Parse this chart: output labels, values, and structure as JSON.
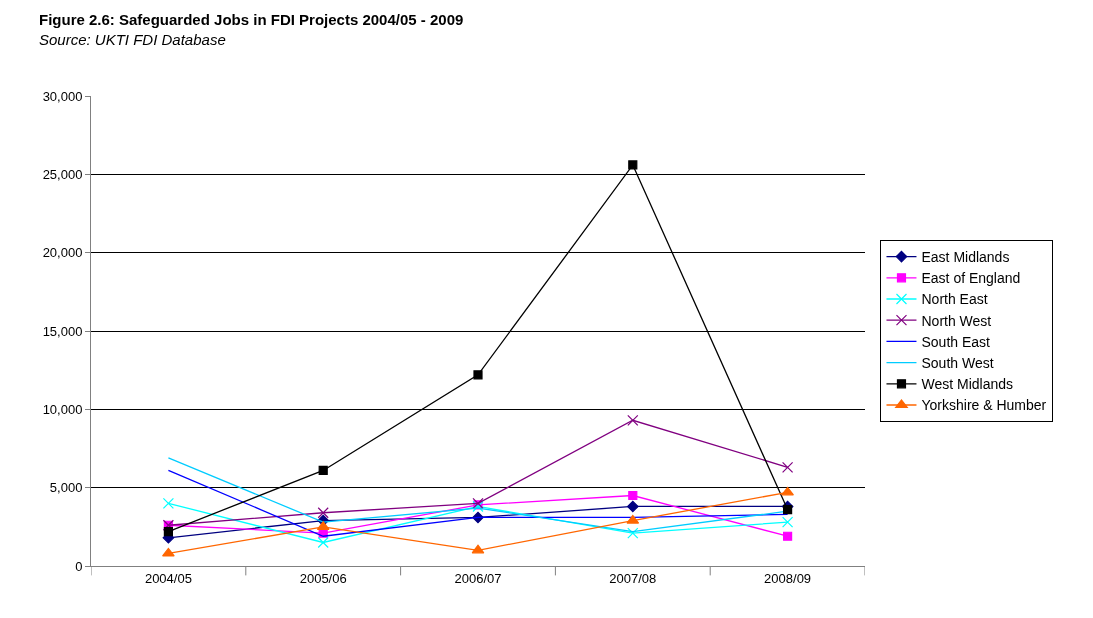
{
  "chart_data": {
    "type": "line",
    "title": "Figure 2.6: Safeguarded Jobs in FDI Projects 2004/05 - 2009",
    "subtitle": "Source: UKTI FDI Database",
    "categories": [
      "2004/05",
      "2005/06",
      "2006/07",
      "2007/08",
      "2008/09"
    ],
    "series": [
      {
        "name": "East Midlands",
        "color": "#000080",
        "marker": "diamond",
        "values": [
          1800,
          2900,
          3100,
          3800,
          3800
        ]
      },
      {
        "name": "East of England",
        "color": "#ff00ff",
        "marker": "square",
        "values": [
          2600,
          2100,
          3900,
          4500,
          1900
        ]
      },
      {
        "name": "North East",
        "color": "#00ffff",
        "marker": "cross",
        "values": [
          4000,
          1500,
          3800,
          2100,
          2800
        ]
      },
      {
        "name": "North West",
        "color": "#800080",
        "marker": "cross",
        "values": [
          2600,
          3400,
          4000,
          9300,
          6300
        ]
      },
      {
        "name": "South East",
        "color": "#0000ff",
        "marker": "none",
        "values": [
          6100,
          1900,
          3100,
          3100,
          3300
        ]
      },
      {
        "name": "South West",
        "color": "#00ccff",
        "marker": "none",
        "values": [
          6900,
          2800,
          3700,
          2200,
          3500
        ]
      },
      {
        "name": "West Midlands",
        "color": "#000000",
        "marker": "square",
        "values": [
          2200,
          6100,
          12200,
          25600,
          3600
        ]
      },
      {
        "name": "Yorkshire & Humber",
        "color": "#ff6600",
        "marker": "triangle",
        "values": [
          800,
          2500,
          1000,
          2900,
          4700
        ]
      }
    ],
    "ylim": [
      0,
      30000
    ],
    "yticks": [
      {
        "value": 0,
        "label": "0"
      },
      {
        "value": 5000,
        "label": "5,000"
      },
      {
        "value": 10000,
        "label": "10,000"
      },
      {
        "value": 15000,
        "label": "15,000"
      },
      {
        "value": 20000,
        "label": "20,000"
      },
      {
        "value": 25000,
        "label": "25,000"
      },
      {
        "value": 30000,
        "label": "30,000"
      }
    ],
    "grid": "y",
    "legend": "right",
    "line_style": "solid"
  }
}
